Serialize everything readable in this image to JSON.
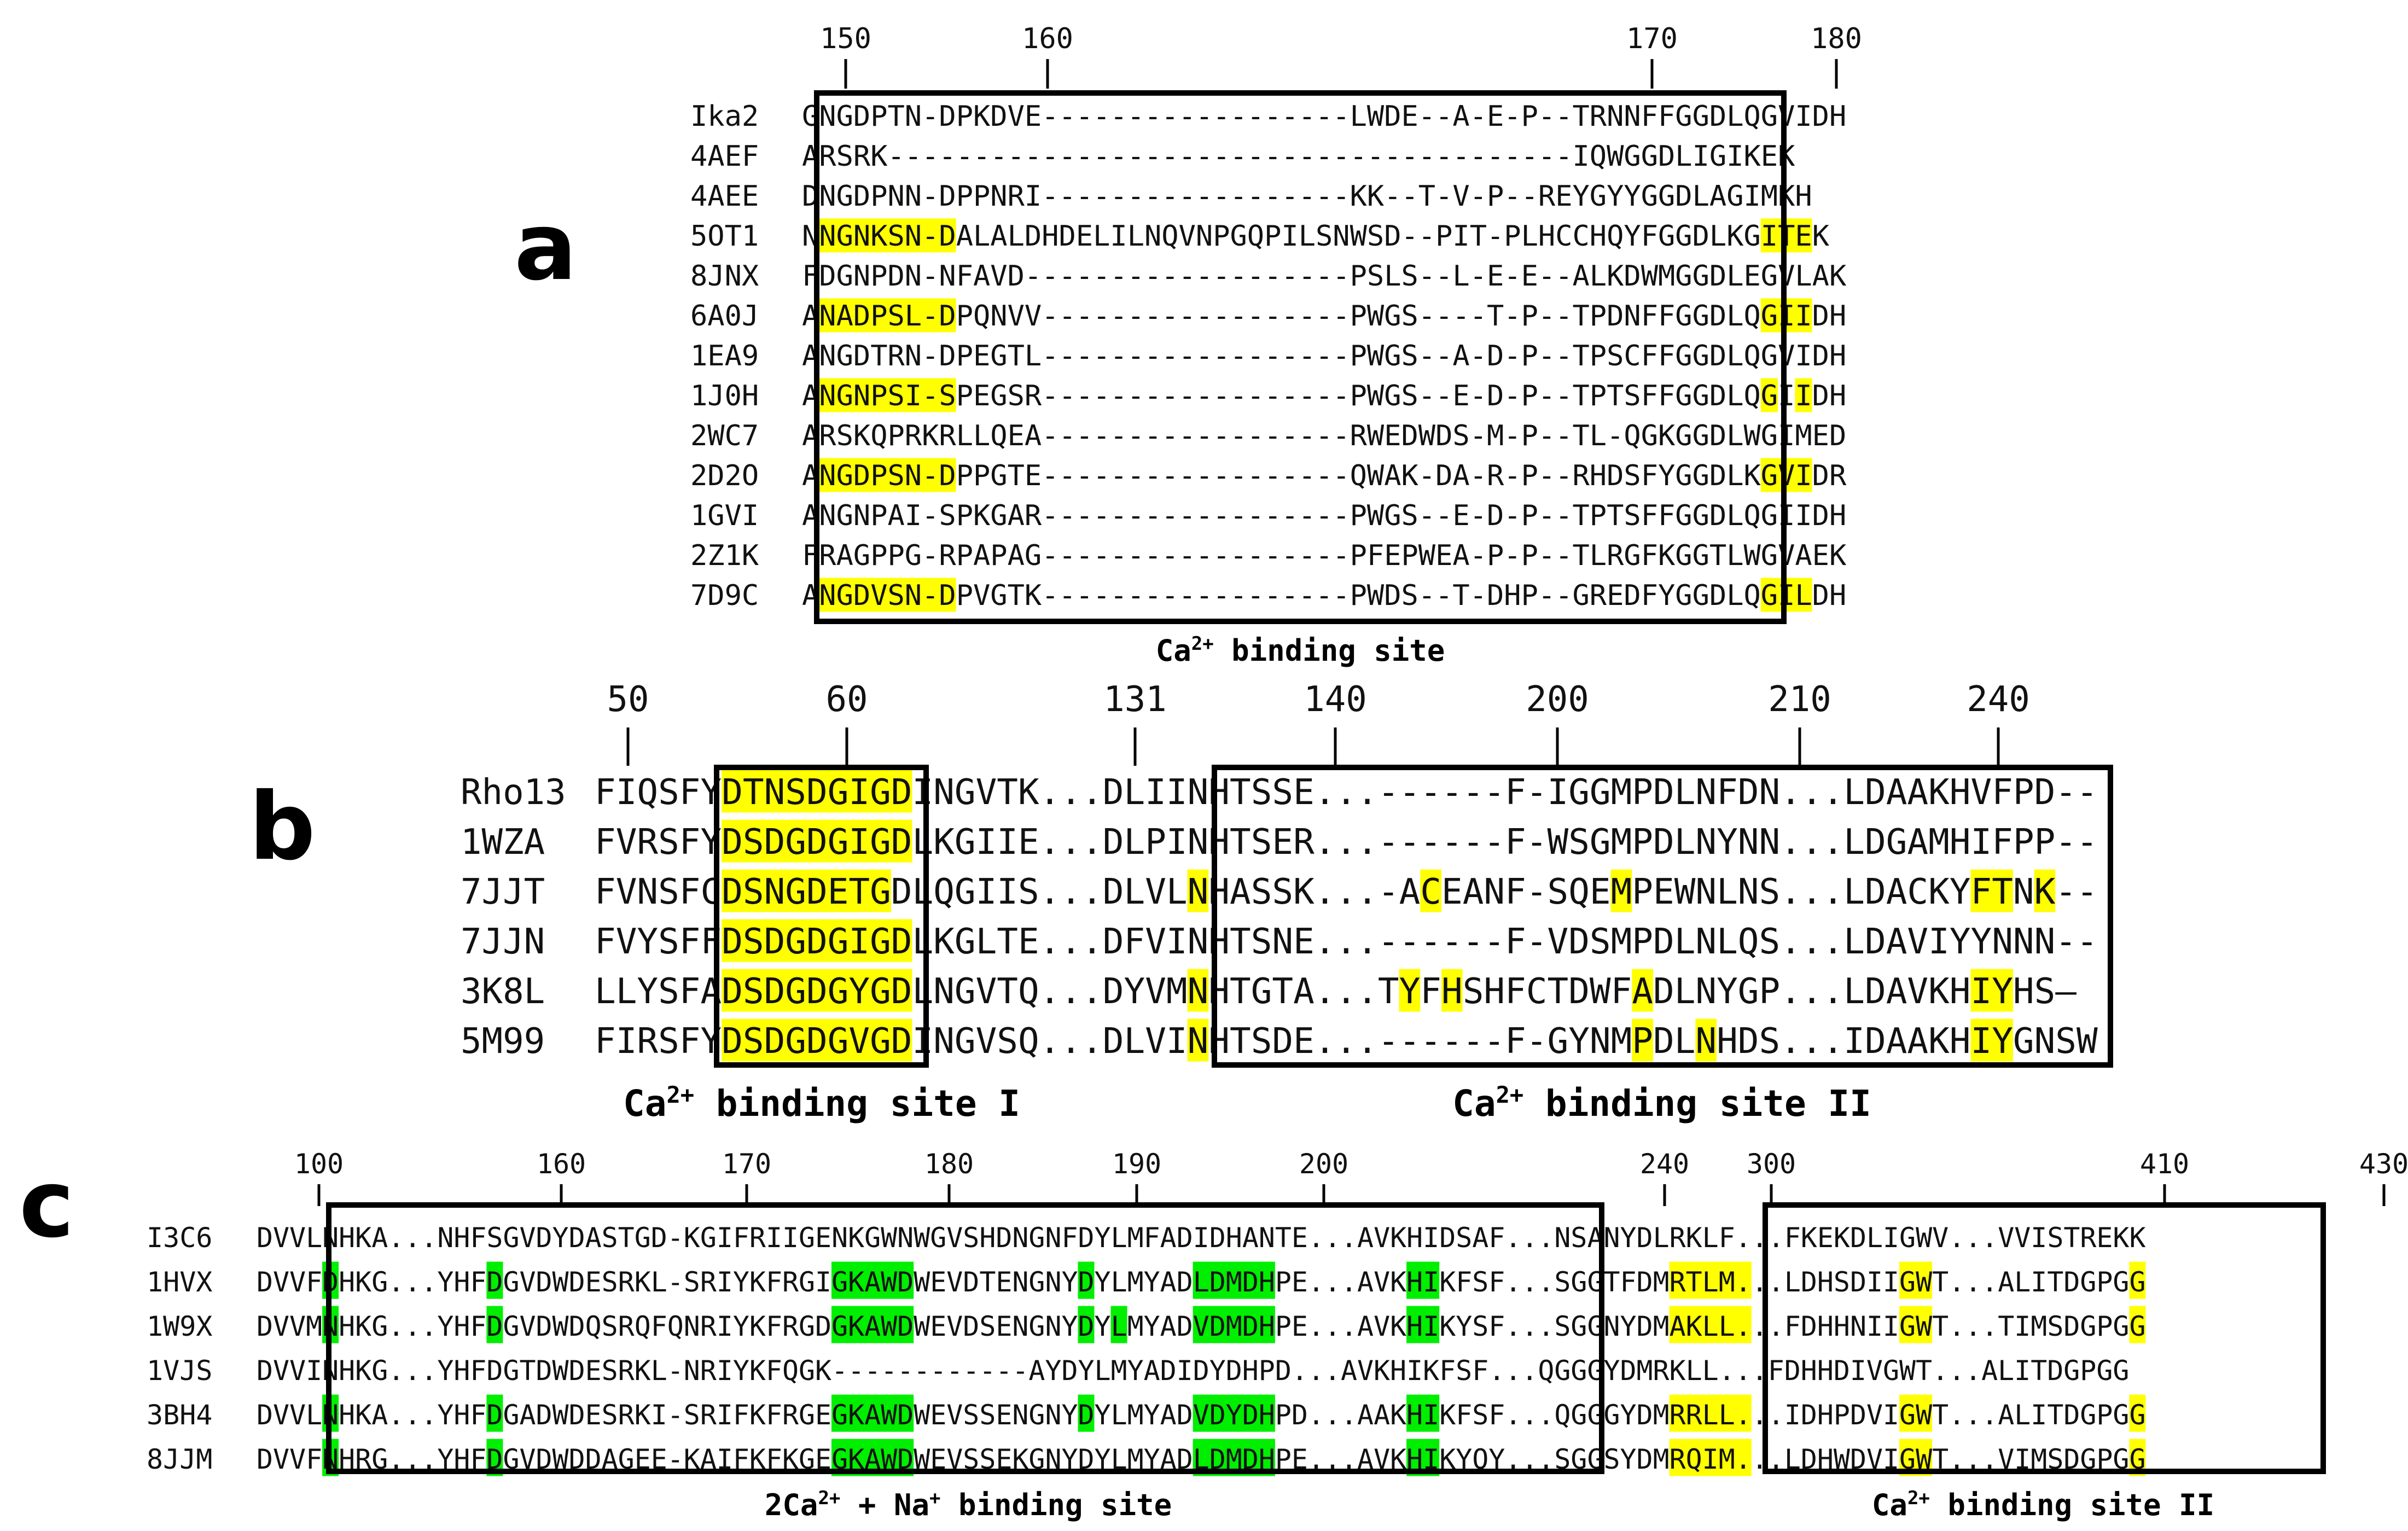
{
  "colors": {
    "yellow": "#ffff00",
    "green": "#00ee00",
    "text": "#111111",
    "frame": "#000000"
  },
  "panels": [
    {
      "letter": "a",
      "ruler": [
        "150",
        "160",
        "170",
        "180"
      ],
      "names": [
        "Ika2",
        "4AEF",
        "4AEE",
        "5OT1",
        "8JNX",
        "6A0J",
        "1EA9",
        "1J0H",
        "2WC7",
        "2D2O",
        "1GVI",
        "2Z1K",
        "7D9C"
      ],
      "sequences": [
        "GNGDPTN-DPKDVE------------------LWDE--A-E-P--TRNNFFGGDLQGVIDH",
        "ARSRK----------------------------------------IQWGGDLIGIKEK",
        "DNGDPNN-DPPNRI------------------KK--T-V-P--REYGYYGGDLAGIMKH",
        "NNGNKSN-DALALDHDELILNQVNPGQPILSNWSD--PIT-PLHCCHQYFGGDLKGITEK",
        "FDGNPDN-NFAVD-------------------PSLS--L-E-E--ALKDWMGGDLEGVLAK",
        "ANADPSL-DPQNVV------------------PWGS----T-P--TPDNFFGGDLQGIIDH",
        "ANGDTRN-DPEGTL------------------PWGS--A-D-P--TPSCFFGGDLQGVIDH",
        "ANGNPSI-SPEGSR------------------PWGS--E-D-P--TPTSFFGGDLQGIIDH",
        "ARSKQPRKRLLQEA------------------RWEDWDS-M-P--TL-QGKGGDLWGIMED",
        "ANGDPSN-DPPGTE------------------QWAK-DA-R-P--RHDSFYGGDLKGVIDR",
        "ANGNPAI-SPKGAR------------------PWGS--E-D-P--TPTSFFGGDLQGIIDH",
        "FRAGPPG-RPAPAG------------------PFEPWEA-P-P--TLRGFKGGTLWGVAEK",
        "ANGDVSN-DPVGTK------------------PWDS--T-DHP--GREDFYGGDLQGILDH"
      ],
      "highlights": [
        {
          "row": 3,
          "start": 1,
          "len": 8,
          "color": "yellow"
        },
        {
          "row": 3,
          "start": 56,
          "len": 3,
          "color": "yellow"
        },
        {
          "row": 5,
          "start": 1,
          "len": 8,
          "color": "yellow"
        },
        {
          "row": 5,
          "start": 56,
          "len": 3,
          "color": "yellow"
        },
        {
          "row": 7,
          "start": 1,
          "len": 8,
          "color": "yellow"
        },
        {
          "row": 7,
          "start": 56,
          "len": 1,
          "color": "yellow"
        },
        {
          "row": 7,
          "start": 58,
          "len": 1,
          "color": "yellow"
        },
        {
          "row": 9,
          "start": 1,
          "len": 8,
          "color": "yellow"
        },
        {
          "row": 9,
          "start": 56,
          "len": 3,
          "color": "yellow"
        },
        {
          "row": 12,
          "start": 1,
          "len": 8,
          "color": "yellow"
        },
        {
          "row": 12,
          "start": 56,
          "len": 3,
          "color": "yellow"
        }
      ],
      "caption": {
        "pre": "Ca",
        "sup": "2+",
        "post": " binding site"
      }
    },
    {
      "letter": "b",
      "ruler": [
        "50",
        "60",
        "131",
        "140",
        "200",
        "210",
        "240"
      ],
      "names": [
        "Rho13",
        "1WZA",
        "7JJT",
        "7JJN",
        "3K8L",
        "5M99"
      ],
      "sequences": [
        "FIQSFYDTNSDGIGDINGVTK...DLIINHTSSE...------F-IGGMPDLNFDN...LDAAKHVFPD--",
        "FVRSFYDSDGDGIGDLKGIIE...DLPINHTSER...------F-WSGMPDLNYNN...LDGAMHIFPP--",
        "FVNSFCDSNGDETGDLQGIIS...DLVLNHASSK...-ACEANF-SQEMPEWNLNS...LDACKYFTNK--",
        "FVYSFFDSDGDGIGDLKGLTE...DFVINHTSNE...------F-VDSMPDLNLQS...LDAVIYYNNN--",
        "LLYSFADSDGDGYGDLNGVTQ...DYVMNHTGTA...TYFHSHFCTDWFADLNYGP...LDAVKHIYHS—",
        "FIRSFYDSDGDGVGDINGVSQ...DLVINHTSDE...------F-GYNMPDLNHDS...IDAAKHIYGNSW"
      ],
      "highlights": [
        {
          "row": 0,
          "start": 6,
          "len": 9,
          "color": "yellow"
        },
        {
          "row": 1,
          "start": 6,
          "len": 9,
          "color": "yellow"
        },
        {
          "row": 2,
          "start": 6,
          "len": 8,
          "color": "yellow"
        },
        {
          "row": 2,
          "start": 28,
          "len": 1,
          "color": "yellow"
        },
        {
          "row": 2,
          "start": 39,
          "len": 1,
          "color": "yellow"
        },
        {
          "row": 2,
          "start": 48,
          "len": 1,
          "color": "yellow"
        },
        {
          "row": 2,
          "start": 65,
          "len": 2,
          "color": "yellow"
        },
        {
          "row": 2,
          "start": 68,
          "len": 1,
          "color": "yellow"
        },
        {
          "row": 3,
          "start": 6,
          "len": 9,
          "color": "yellow"
        },
        {
          "row": 4,
          "start": 6,
          "len": 9,
          "color": "yellow"
        },
        {
          "row": 4,
          "start": 28,
          "len": 1,
          "color": "yellow"
        },
        {
          "row": 4,
          "start": 38,
          "len": 1,
          "color": "yellow"
        },
        {
          "row": 4,
          "start": 40,
          "len": 1,
          "color": "yellow"
        },
        {
          "row": 4,
          "start": 49,
          "len": 1,
          "color": "yellow"
        },
        {
          "row": 4,
          "start": 65,
          "len": 2,
          "color": "yellow"
        },
        {
          "row": 5,
          "start": 6,
          "len": 9,
          "color": "yellow"
        },
        {
          "row": 5,
          "start": 28,
          "len": 1,
          "color": "yellow"
        },
        {
          "row": 5,
          "start": 49,
          "len": 1,
          "color": "yellow"
        },
        {
          "row": 5,
          "start": 52,
          "len": 1,
          "color": "yellow"
        },
        {
          "row": 5,
          "start": 65,
          "len": 2,
          "color": "yellow"
        }
      ],
      "captions": [
        {
          "pre": "Ca",
          "sup": "2+",
          "post": " binding site I"
        },
        {
          "pre": "Ca",
          "sup": "2+",
          "post": " binding site II"
        }
      ]
    },
    {
      "letter": "c",
      "ruler": [
        "100",
        "160",
        "170",
        "180",
        "190",
        "200",
        "240",
        "300",
        "410",
        "430"
      ],
      "names": [
        "I3C6",
        "1HVX",
        "1W9X",
        "1VJS",
        "3BH4",
        "8JJM"
      ],
      "sequences": [
        "DVVLNHKA...NHFSGVDYDASTGD-KGIFRIIGENKGWNWGVSHDNGNFDYLMFADIDHANTE...AVKHIDSAF...NSANYDLRKLF...FKEKDLIGWV...VVISTREKK",
        "DVVFDHKG...YHFDGVDWDESRKL-SRIYKFRGIGKAWDWEVDTENGNYDYLMYADLDMDHPE...AVKHIKFSF...SGGTFDMRTLM...LDHSDIIGWT...ALITDGPGG",
        "DVVMNHKG...YHFDGVDWDQSRQFQNRIYKFRGDGKAWDWEVDSENGNYDYLMYADVDMDHPE...AVKHIKYSF...SGGNYDMAKLL...FDHHNIIGWT...TIMSDGPGG",
        "DVVINHKG...YHFDGTDWDESRKL-NRIYKFQGK------------AYDYLMYADIDYDHPD...AVKHIKFSF...QGGGYDMRKLL...FDHHDIVGWT...ALITDGPGG",
        "DVVLNHKA...YHFDGADWDESRKI-SRIFKFRGEGKAWDWEVSSENGNYDYLMYADVDYDHPD...AAKHIKFSF...QGGGYDMRRLL...IDHPDVIGWT...ALITDGPGG",
        "DVVFNHRG...YHFDGVDWDDAGEE-KAIFKFKGEGKAWDWEVSSEKGNYDYLMYADLDMDHPE...AVKHIKYQY...SGGSYDMRQIM...LDHWDVIGWT...VIMSDGPGG"
      ],
      "highlights": [
        {
          "row": 1,
          "start": 4,
          "len": 1,
          "color": "green"
        },
        {
          "row": 1,
          "start": 14,
          "len": 1,
          "color": "green"
        },
        {
          "row": 1,
          "start": 35,
          "len": 5,
          "color": "green"
        },
        {
          "row": 1,
          "start": 50,
          "len": 1,
          "color": "green"
        },
        {
          "row": 1,
          "start": 57,
          "len": 5,
          "color": "green"
        },
        {
          "row": 1,
          "start": 70,
          "len": 2,
          "color": "green"
        },
        {
          "row": 1,
          "start": 86,
          "len": 5,
          "color": "yellow"
        },
        {
          "row": 1,
          "start": 100,
          "len": 2,
          "color": "yellow"
        },
        {
          "row": 1,
          "start": 114,
          "len": 1,
          "color": "yellow"
        },
        {
          "row": 2,
          "start": 4,
          "len": 1,
          "color": "green"
        },
        {
          "row": 2,
          "start": 14,
          "len": 1,
          "color": "green"
        },
        {
          "row": 2,
          "start": 35,
          "len": 5,
          "color": "green"
        },
        {
          "row": 2,
          "start": 50,
          "len": 1,
          "color": "green"
        },
        {
          "row": 2,
          "start": 52,
          "len": 1,
          "color": "green"
        },
        {
          "row": 2,
          "start": 57,
          "len": 5,
          "color": "green"
        },
        {
          "row": 2,
          "start": 70,
          "len": 2,
          "color": "green"
        },
        {
          "row": 2,
          "start": 86,
          "len": 5,
          "color": "yellow"
        },
        {
          "row": 2,
          "start": 100,
          "len": 2,
          "color": "yellow"
        },
        {
          "row": 2,
          "start": 114,
          "len": 1,
          "color": "yellow"
        },
        {
          "row": 4,
          "start": 4,
          "len": 1,
          "color": "green"
        },
        {
          "row": 4,
          "start": 14,
          "len": 1,
          "color": "green"
        },
        {
          "row": 4,
          "start": 35,
          "len": 5,
          "color": "green"
        },
        {
          "row": 4,
          "start": 50,
          "len": 1,
          "color": "green"
        },
        {
          "row": 4,
          "start": 57,
          "len": 5,
          "color": "green"
        },
        {
          "row": 4,
          "start": 70,
          "len": 2,
          "color": "green"
        },
        {
          "row": 4,
          "start": 86,
          "len": 5,
          "color": "yellow"
        },
        {
          "row": 4,
          "start": 100,
          "len": 2,
          "color": "yellow"
        },
        {
          "row": 4,
          "start": 114,
          "len": 1,
          "color": "yellow"
        },
        {
          "row": 5,
          "start": 4,
          "len": 1,
          "color": "green"
        },
        {
          "row": 5,
          "start": 14,
          "len": 1,
          "color": "green"
        },
        {
          "row": 5,
          "start": 35,
          "len": 5,
          "color": "green"
        },
        {
          "row": 5,
          "start": 57,
          "len": 5,
          "color": "green"
        },
        {
          "row": 5,
          "start": 70,
          "len": 2,
          "color": "green"
        },
        {
          "row": 5,
          "start": 86,
          "len": 5,
          "color": "yellow"
        },
        {
          "row": 5,
          "start": 100,
          "len": 2,
          "color": "yellow"
        },
        {
          "row": 5,
          "start": 114,
          "len": 1,
          "color": "yellow"
        }
      ],
      "captions": [
        {
          "pre": "2Ca",
          "sup": "2+",
          "mid": " + Na",
          "sup2": "+",
          "post": " binding site"
        },
        {
          "pre": "Ca",
          "sup": "2+",
          "post": " binding site II"
        }
      ]
    }
  ]
}
